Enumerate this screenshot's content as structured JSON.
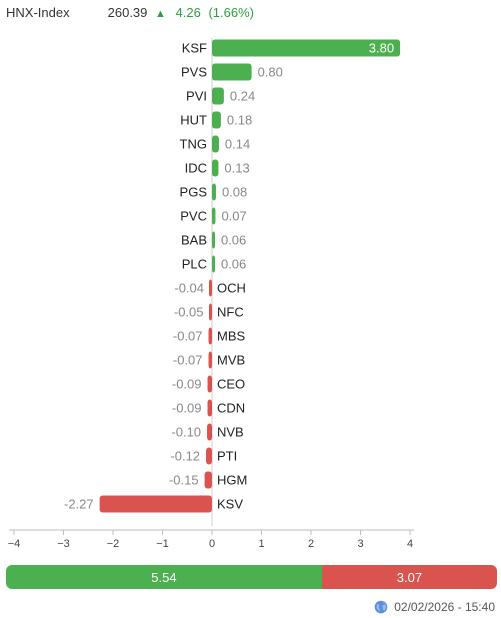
{
  "header": {
    "index_name": "HNX-Index",
    "value": "260.39",
    "arrow": "▲",
    "change": "4.26",
    "change_pct": "(1.66%)"
  },
  "colors": {
    "positive": "#4caf50",
    "negative": "#d9534f",
    "positive_text": "#2e9e3e"
  },
  "chart_data": {
    "type": "bar",
    "orientation": "horizontal",
    "categories": [
      "KSF",
      "PVS",
      "PVI",
      "HUT",
      "TNG",
      "IDC",
      "PGS",
      "PVC",
      "BAB",
      "PLC",
      "OCH",
      "NFC",
      "MBS",
      "MVB",
      "CEO",
      "CDN",
      "NVB",
      "PTI",
      "HGM",
      "KSV"
    ],
    "values": [
      3.8,
      0.8,
      0.24,
      0.18,
      0.14,
      0.13,
      0.08,
      0.07,
      0.06,
      0.06,
      -0.04,
      -0.05,
      -0.07,
      -0.07,
      -0.09,
      -0.09,
      -0.1,
      -0.12,
      -0.15,
      -2.27
    ],
    "value_labels": [
      "3.80",
      "0.80",
      "0.24",
      "0.18",
      "0.14",
      "0.13",
      "0.08",
      "0.07",
      "0.06",
      "0.06",
      "-0.04",
      "-0.05",
      "-0.07",
      "-0.07",
      "-0.09",
      "-0.09",
      "-0.10",
      "-0.12",
      "-0.15",
      "-2.27"
    ],
    "xlim": [
      -4,
      4
    ],
    "xticks": [
      -4,
      -3,
      -2,
      -1,
      0,
      1,
      2,
      3,
      4
    ],
    "xtick_labels": [
      "−4",
      "−3",
      "−2",
      "−1",
      "0",
      "1",
      "2",
      "3",
      "4"
    ],
    "grid": false
  },
  "summary": {
    "positive_total": "5.54",
    "negative_total": "3.07",
    "positive_value": 5.54,
    "negative_value": 3.07
  },
  "footer": {
    "timestamp": "02/02/2026 - 15:40",
    "icon": "globe-icon"
  }
}
